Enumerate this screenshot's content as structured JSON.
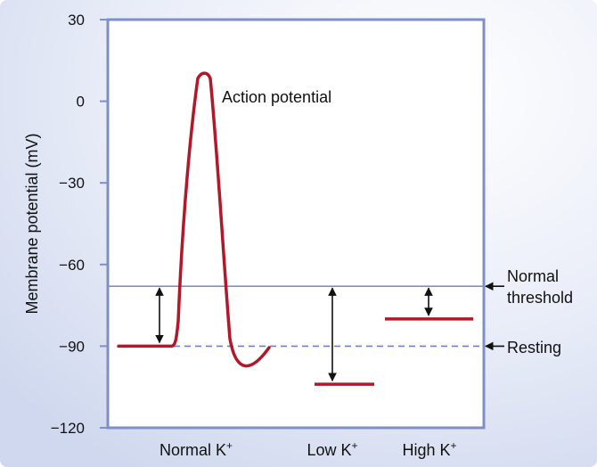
{
  "chart_data": {
    "type": "line",
    "ylabel": "Membrane potential (mV)",
    "xlabel": "",
    "ylim": [
      -120,
      30
    ],
    "yticks": [
      {
        "value": 30,
        "label": "30"
      },
      {
        "value": 0,
        "label": "0"
      },
      {
        "value": -30,
        "label": "−30"
      },
      {
        "value": -60,
        "label": "−60"
      },
      {
        "value": -90,
        "label": "−90"
      },
      {
        "value": -120,
        "label": "−120"
      }
    ],
    "categories": [
      {
        "main": "Normal K",
        "sup": "+"
      },
      {
        "main": "Low K",
        "sup": "+"
      },
      {
        "main": "High K",
        "sup": "+"
      }
    ],
    "reference_lines": {
      "normal_threshold": {
        "value": -68,
        "label_line1": "Normal",
        "label_line2": "threshold"
      },
      "resting": {
        "value": -90,
        "label": "Resting"
      }
    },
    "resting_levels": {
      "normal": -90,
      "low": -104,
      "high": -80
    },
    "action_potential_label": "Action potential",
    "action_potential_peak": 10
  },
  "colors": {
    "panel_background": "#d8e0f2",
    "plot_border": "#7f8fc7",
    "threshold_line": "#7f8fc7",
    "resting_line": "#6f80c0",
    "trace": "#b3172a",
    "text": "#111111"
  }
}
